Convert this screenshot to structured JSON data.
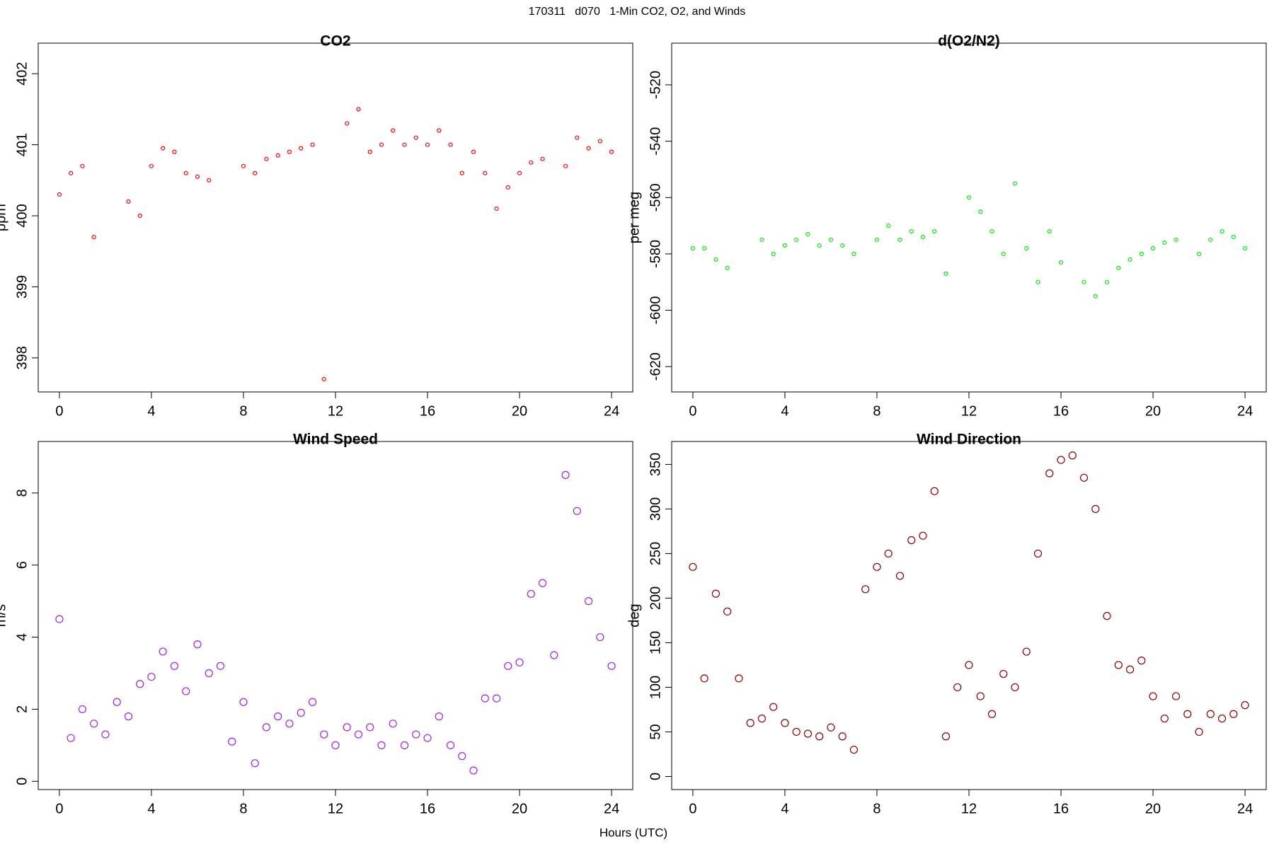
{
  "title": "170311   d070   1-Min CO2, O2, and Winds",
  "x_label": "Hours (UTC)",
  "chart_data": [
    {
      "type": "scatter",
      "title": "CO2",
      "y_label": "ppm",
      "color": "#ff0000",
      "x": [
        0,
        0.5,
        1,
        1.5,
        2,
        2.5,
        3,
        3.5,
        4,
        4.5,
        5,
        5.5,
        6,
        6.5,
        7,
        7.5,
        8,
        8.5,
        9,
        9.5,
        10,
        10.5,
        11,
        11.5,
        12,
        12.5,
        13,
        13.5,
        14,
        14.5,
        15,
        15.5,
        16,
        16.5,
        17,
        17.5,
        18,
        18.5,
        19,
        19.5,
        20,
        20.5,
        21,
        21.5,
        22,
        22.5,
        23,
        23.5,
        24
      ],
      "values": [
        400.3,
        400.6,
        400.7,
        399.7,
        null,
        null,
        400.2,
        400.0,
        400.7,
        400.95,
        400.9,
        400.6,
        400.55,
        400.5,
        null,
        null,
        400.7,
        400.6,
        400.8,
        400.85,
        400.9,
        400.95,
        401.0,
        397.7,
        null,
        401.3,
        401.5,
        400.9,
        401.0,
        401.2,
        401.0,
        401.1,
        401.0,
        401.2,
        401.0,
        400.6,
        400.9,
        400.6,
        400.1,
        400.4,
        400.6,
        400.75,
        400.8,
        null,
        400.7,
        401.1,
        400.95,
        401.05,
        400.9
      ],
      "xlim": [
        -0.92,
        24.92
      ],
      "ylim": [
        397.52,
        402.43
      ],
      "xticks": [
        0,
        4,
        8,
        12,
        16,
        20,
        24
      ],
      "yticks": [
        398,
        399,
        400,
        401,
        402
      ]
    },
    {
      "type": "scatter",
      "title": "d(O2/N2)",
      "y_label": "per meg",
      "color": "#00ee00",
      "x": [
        0,
        0.5,
        1,
        1.5,
        2,
        2.5,
        3,
        3.5,
        4,
        4.5,
        5,
        5.5,
        6,
        6.5,
        7,
        7.5,
        8,
        8.5,
        9,
        9.5,
        10,
        10.5,
        11,
        11.5,
        12,
        12.5,
        13,
        13.5,
        14,
        14.5,
        15,
        15.5,
        16,
        16.5,
        17,
        17.5,
        18,
        18.5,
        19,
        19.5,
        20,
        20.5,
        21,
        21.5,
        22,
        22.5,
        23,
        23.5,
        24
      ],
      "values": [
        -578,
        -578,
        -582,
        -585,
        null,
        null,
        -575,
        -580,
        -577,
        -575,
        -573,
        -577,
        -575,
        -577,
        -580,
        null,
        -575,
        -570,
        -575,
        -572,
        -574,
        -572,
        -587,
        null,
        -560,
        -565,
        -572,
        -580,
        -555,
        -578,
        -590,
        -572,
        -583,
        null,
        -590,
        -595,
        -590,
        -585,
        -582,
        -580,
        -578,
        -576,
        -575,
        null,
        -580,
        -575,
        -572,
        -574,
        -578
      ],
      "xlim": [
        -0.92,
        24.92
      ],
      "ylim": [
        -629,
        -505.2
      ],
      "xticks": [
        0,
        4,
        8,
        12,
        16,
        20,
        24
      ],
      "yticks": [
        -620,
        -600,
        -580,
        -560,
        -540,
        -520
      ]
    },
    {
      "type": "scatter",
      "title": "Wind Speed",
      "y_label": "m/s",
      "color": "#a020f0",
      "x": [
        0,
        0.5,
        1,
        1.5,
        2,
        2.5,
        3,
        3.5,
        4,
        4.5,
        5,
        5.5,
        6,
        6.5,
        7,
        7.5,
        8,
        8.5,
        9,
        9.5,
        10,
        10.5,
        11,
        11.5,
        12,
        12.5,
        13,
        13.5,
        14,
        14.5,
        15,
        15.5,
        16,
        16.5,
        17,
        17.5,
        18,
        18.5,
        19,
        19.5,
        20,
        20.5,
        21,
        21.5,
        22,
        22.5,
        23,
        23.5,
        24
      ],
      "values": [
        4.5,
        1.2,
        2.0,
        1.6,
        1.3,
        2.2,
        1.8,
        2.7,
        2.9,
        3.6,
        3.2,
        2.5,
        3.8,
        3.0,
        3.2,
        1.1,
        2.2,
        0.5,
        1.5,
        1.8,
        1.6,
        1.9,
        2.2,
        1.3,
        1.0,
        1.5,
        1.3,
        1.5,
        1.0,
        1.6,
        1.0,
        1.3,
        1.2,
        1.8,
        1.0,
        0.7,
        0.3,
        2.3,
        2.3,
        3.2,
        3.3,
        5.2,
        5.5,
        3.5,
        8.5,
        7.5,
        5.0,
        4.0,
        3.2
      ],
      "xlim": [
        -0.92,
        24.92
      ],
      "ylim": [
        -0.23,
        9.43
      ],
      "xticks": [
        0,
        4,
        8,
        12,
        16,
        20,
        24
      ],
      "yticks": [
        0,
        2,
        4,
        6,
        8
      ]
    },
    {
      "type": "scatter",
      "title": "Wind Direction",
      "y_label": "deg",
      "color": "#8b0000",
      "x": [
        0,
        0.5,
        1,
        1.5,
        2,
        2.5,
        3,
        3.5,
        4,
        4.5,
        5,
        5.5,
        6,
        6.5,
        7,
        7.5,
        8,
        8.5,
        9,
        9.5,
        10,
        10.5,
        11,
        11.5,
        12,
        12.5,
        13,
        13.5,
        14,
        14.5,
        15,
        15.5,
        16,
        16.5,
        17,
        17.5,
        18,
        18.5,
        19,
        19.5,
        20,
        20.5,
        21,
        21.5,
        22,
        22.5,
        23,
        23.5,
        24
      ],
      "values": [
        235,
        110,
        205,
        185,
        110,
        60,
        65,
        78,
        60,
        50,
        48,
        45,
        55,
        45,
        30,
        210,
        235,
        250,
        225,
        265,
        270,
        320,
        45,
        100,
        125,
        90,
        70,
        115,
        100,
        140,
        250,
        340,
        355,
        360,
        335,
        300,
        180,
        125,
        120,
        130,
        90,
        65,
        90,
        70,
        50,
        70,
        65,
        70,
        80
      ],
      "xlim": [
        -0.92,
        24.92
      ],
      "ylim": [
        -14.7,
        375.7
      ],
      "xticks": [
        0,
        4,
        8,
        12,
        16,
        20,
        24
      ],
      "yticks": [
        0,
        50,
        100,
        150,
        200,
        250,
        300,
        350
      ]
    }
  ]
}
